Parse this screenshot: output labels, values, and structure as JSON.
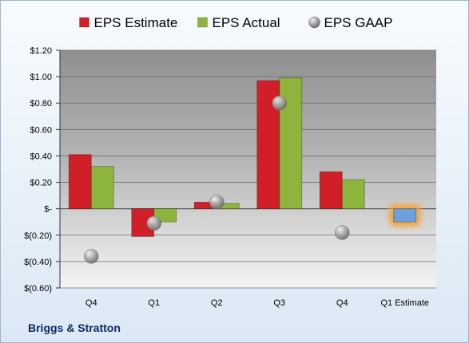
{
  "company_label": "Briggs & Stratton",
  "chart_data": {
    "type": "bar",
    "title": "",
    "xlabel": "",
    "ylabel": "",
    "categories": [
      "Q4",
      "Q1",
      "Q2",
      "Q3",
      "Q4",
      "Q1 Estimate"
    ],
    "series": [
      {
        "name": "EPS Estimate",
        "type": "bar",
        "color": "#d01f27",
        "values": [
          0.41,
          -0.21,
          0.05,
          0.97,
          0.28,
          null
        ]
      },
      {
        "name": "EPS Actual",
        "type": "bar",
        "color": "#8db43c",
        "values": [
          0.32,
          -0.1,
          0.04,
          0.99,
          0.22,
          null
        ]
      },
      {
        "name": "EPS GAAP",
        "type": "scatter",
        "color": "#a9a9a9",
        "values": [
          -0.36,
          -0.11,
          0.05,
          0.8,
          -0.18,
          null
        ]
      },
      {
        "name": "",
        "type": "bar",
        "color": "#6d9fdb",
        "highlight": "#f7a234",
        "values": [
          null,
          null,
          null,
          null,
          null,
          -0.1
        ]
      }
    ],
    "ylim": [
      -0.6,
      1.2
    ],
    "yticks": [
      1.2,
      1.0,
      0.8,
      0.6,
      0.4,
      0.2,
      0,
      -0.2,
      -0.4,
      -0.6
    ],
    "ytick_labels": [
      "$1.20",
      "$1.00",
      "$0.80",
      "$0.60",
      "$0.40",
      "$0.20",
      "$-",
      "$(0.20)",
      "$(0.40)",
      "$(0.60)"
    ],
    "grid": true,
    "legend": "top-center"
  }
}
